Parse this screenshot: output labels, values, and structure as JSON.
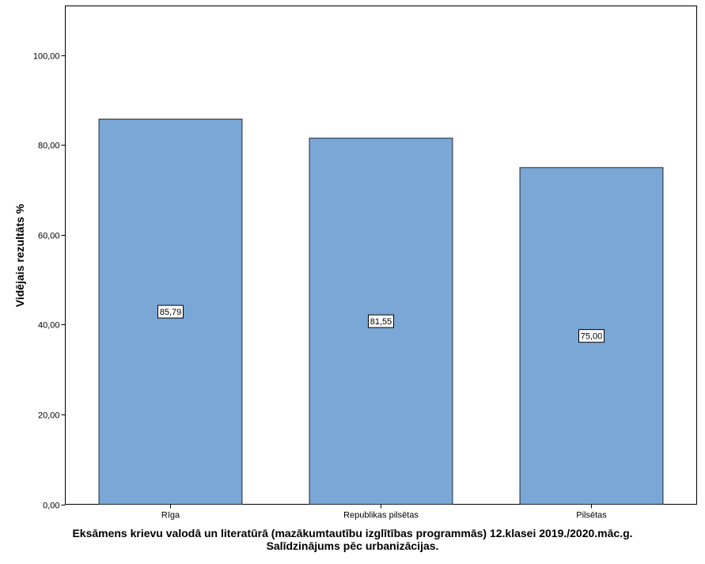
{
  "chart_data": {
    "type": "bar",
    "categories": [
      "Rīga",
      "Republikas pilsētas",
      "Pilsētas"
    ],
    "values": [
      85.79,
      81.55,
      75.0
    ],
    "data_labels": [
      "85,79",
      "81,55",
      "75,00"
    ],
    "ylabel": "Vidējais rezultāts %",
    "xlabel_line1": "Eksāmens krievu valodā un literatūrā (mazākumtautību izglītības programmās) 12.klasei 2019./2020.māc.g.",
    "xlabel_line2": "Salīdzinājums pēc urbanizācijas.",
    "ylim": [
      0,
      111
    ],
    "yticks": [
      0,
      20,
      40,
      60,
      80,
      100
    ],
    "ytick_labels": [
      "0,00",
      "20,00",
      "40,00",
      "60,00",
      "80,00",
      "100,00"
    ],
    "grid": false,
    "bar_color": "#7BA7D6"
  }
}
